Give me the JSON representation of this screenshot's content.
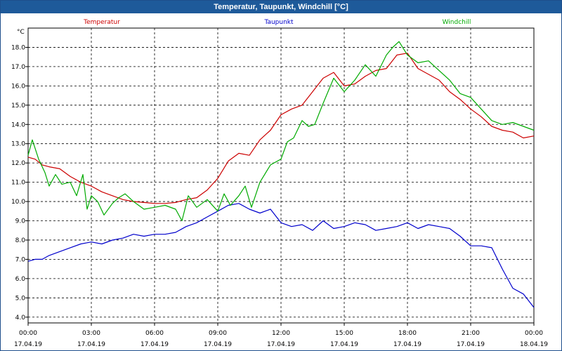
{
  "window": {
    "title": "Temperatur, Taupunkt, Windchill [°C]"
  },
  "chart_data": {
    "type": "line",
    "title": "Temperatur, Taupunkt, Windchill [°C]",
    "ylabel": "°C",
    "ylim": [
      3.7,
      19.0
    ],
    "xlim": [
      0,
      24
    ],
    "grid": true,
    "legend_position": "top",
    "y_ticks": [
      4.0,
      5.0,
      6.0,
      7.0,
      8.0,
      9.0,
      10.0,
      11.0,
      12.0,
      13.0,
      14.0,
      15.0,
      16.0,
      17.0,
      18.0
    ],
    "y_tick_labels": [
      "4.0",
      "5.0",
      "6.0",
      "7.0",
      "8.0",
      "9.0",
      "10.0",
      "11.0",
      "12.0",
      "13.0",
      "14.0",
      "15.0",
      "16.0",
      "17.0",
      "18.0"
    ],
    "x_ticks": [
      0,
      3,
      6,
      9,
      12,
      15,
      18,
      21,
      24
    ],
    "x_tick_labels": [
      {
        "time": "00:00",
        "date": "17.04.19"
      },
      {
        "time": "03:00",
        "date": "17.04.19"
      },
      {
        "time": "06:00",
        "date": "17.04.19"
      },
      {
        "time": "09:00",
        "date": "17.04.19"
      },
      {
        "time": "12:00",
        "date": "17.04.19"
      },
      {
        "time": "15:00",
        "date": "17.04.19"
      },
      {
        "time": "18:00",
        "date": "17.04.19"
      },
      {
        "time": "21:00",
        "date": "17.04.19"
      },
      {
        "time": "00:00",
        "date": "18.04.19"
      }
    ],
    "series": [
      {
        "name": "Temperatur",
        "color": "#cc0000",
        "x": [
          0,
          0.33,
          0.67,
          1,
          1.5,
          2,
          2.5,
          3,
          3.5,
          4,
          4.5,
          5,
          5.5,
          6,
          6.5,
          7,
          7.5,
          8,
          8.5,
          9,
          9.5,
          10,
          10.5,
          11,
          11.5,
          12,
          12.5,
          13,
          13.5,
          14,
          14.5,
          15,
          15.5,
          16,
          16.5,
          17,
          17.5,
          18,
          18.5,
          19,
          19.5,
          20,
          20.5,
          21,
          21.5,
          22,
          22.5,
          23,
          23.5,
          24
        ],
        "values": [
          12.3,
          12.2,
          11.9,
          11.8,
          11.7,
          11.3,
          11.0,
          10.8,
          10.5,
          10.3,
          10.1,
          10.0,
          9.95,
          9.9,
          9.9,
          9.95,
          10.1,
          10.2,
          10.6,
          11.2,
          12.1,
          12.5,
          12.4,
          13.2,
          13.7,
          14.5,
          14.8,
          15.0,
          15.7,
          16.4,
          16.7,
          16.0,
          16.1,
          16.5,
          16.8,
          16.9,
          17.6,
          17.7,
          16.9,
          16.6,
          16.3,
          15.7,
          15.3,
          14.8,
          14.4,
          13.9,
          13.7,
          13.6,
          13.3,
          13.4
        ]
      },
      {
        "name": "Taupunkt",
        "color": "#0000cc",
        "x": [
          0,
          0.33,
          0.67,
          1,
          1.5,
          2,
          2.5,
          3,
          3.5,
          4,
          4.5,
          5,
          5.5,
          6,
          6.5,
          7,
          7.5,
          8,
          8.5,
          9,
          9.5,
          10,
          10.5,
          11,
          11.5,
          12,
          12.5,
          13,
          13.5,
          14,
          14.5,
          15,
          15.5,
          16,
          16.5,
          17,
          17.5,
          18,
          18.5,
          19,
          19.5,
          20,
          20.5,
          21,
          21.5,
          22,
          22.5,
          23,
          23.5,
          24
        ],
        "values": [
          6.9,
          7.0,
          7.0,
          7.2,
          7.4,
          7.6,
          7.8,
          7.9,
          7.8,
          8.0,
          8.1,
          8.3,
          8.2,
          8.3,
          8.3,
          8.4,
          8.7,
          8.9,
          9.2,
          9.5,
          9.8,
          9.9,
          9.6,
          9.4,
          9.6,
          8.9,
          8.7,
          8.8,
          8.5,
          9.0,
          8.6,
          8.7,
          8.9,
          8.8,
          8.5,
          8.6,
          8.7,
          8.9,
          8.6,
          8.8,
          8.7,
          8.6,
          8.2,
          7.7,
          7.7,
          7.6,
          6.5,
          5.5,
          5.2,
          4.5
        ],
        "extra": []
      },
      {
        "name": "Windchill",
        "color": "#00aa00",
        "x": [
          0,
          0.2,
          0.5,
          0.8,
          1,
          1.3,
          1.6,
          2,
          2.3,
          2.6,
          2.8,
          3,
          3.3,
          3.6,
          4,
          4.3,
          4.6,
          5,
          5.5,
          6,
          6.5,
          7,
          7.3,
          7.6,
          8,
          8.5,
          9,
          9.3,
          9.6,
          10,
          10.3,
          10.6,
          11,
          11.5,
          12,
          12.3,
          12.6,
          13,
          13.3,
          13.6,
          14,
          14.5,
          15,
          15.5,
          16,
          16.5,
          17,
          17.3,
          17.6,
          18,
          18.5,
          19,
          19.5,
          20,
          20.5,
          21,
          21.5,
          22,
          22.5,
          23,
          23.5,
          24
        ],
        "values": [
          12.4,
          13.2,
          12.2,
          11.5,
          10.8,
          11.4,
          10.9,
          11.0,
          10.3,
          11.4,
          9.6,
          10.3,
          10.0,
          9.3,
          9.9,
          10.2,
          10.4,
          10.0,
          9.6,
          9.7,
          9.8,
          9.6,
          9.0,
          10.3,
          9.7,
          10.1,
          9.5,
          10.4,
          9.8,
          10.3,
          10.8,
          9.7,
          11.0,
          11.9,
          12.2,
          13.1,
          13.3,
          14.2,
          13.9,
          14.0,
          15.1,
          16.4,
          15.7,
          16.3,
          17.1,
          16.5,
          17.6,
          18.0,
          18.3,
          17.6,
          17.2,
          17.3,
          16.8,
          16.3,
          15.6,
          15.4,
          14.8,
          14.2,
          14.0,
          14.1,
          13.9,
          13.7
        ]
      }
    ]
  }
}
